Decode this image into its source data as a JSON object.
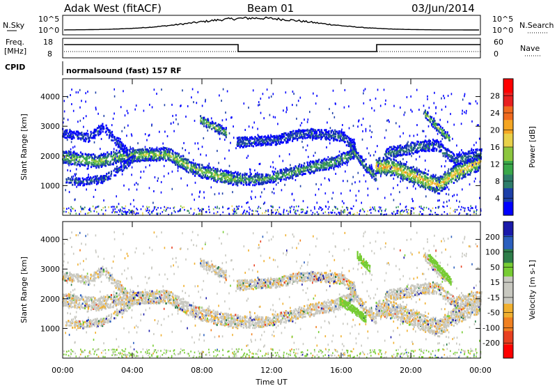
{
  "header": {
    "station": "Adak West (fitACF)",
    "beam": "Beam 01",
    "date": "03/Jun/2014"
  },
  "strips": {
    "nsky": {
      "label": "N.Sky",
      "left_top": "10^5",
      "left_bottom": "10^0",
      "right_top": "10^5",
      "right_bottom": "10^0",
      "right_label": "N.Search"
    },
    "freq": {
      "label_line1": "Freq.",
      "label_line2": "[MHz]",
      "left_top": "18",
      "left_bottom": "8",
      "right_top": "60",
      "right_bottom": "0",
      "right_label": "Nave"
    },
    "cpid": {
      "label": "CPID",
      "text": "normalsound (fast) 157 RF"
    }
  },
  "colors": {
    "power_scale": [
      "#0000ff",
      "#1c3fa8",
      "#2e7d6a",
      "#3aa84a",
      "#8cc63f",
      "#e8d14a",
      "#f5a623",
      "#f06a1e",
      "#e82020",
      "#ff0000"
    ],
    "velocity_scale": [
      "#1a1aaa",
      "#2b5fbe",
      "#2e7d4a",
      "#77cc33",
      "#c8c8c0",
      "#c8c8c0",
      "#f0b030",
      "#f08020",
      "#e84020",
      "#ff0000"
    ],
    "echo_gray": "#c8c8c0"
  },
  "chart_data": [
    {
      "type": "heatmap",
      "name": "power",
      "ylabel": "Slant Range [km]",
      "ylim": [
        0,
        4600
      ],
      "yticks": [
        1000,
        2000,
        3000,
        4000
      ],
      "xlim_hours": [
        0,
        24
      ],
      "colorbar": {
        "label": "Power [dB]",
        "min": 0,
        "max": 32,
        "ticks": [
          4,
          8,
          12,
          16,
          20,
          24,
          28
        ]
      },
      "bands": [
        {
          "h": [
            0.0,
            2.0,
            3.0,
            4.0,
            6.0,
            7.5,
            9.0,
            10.0
          ],
          "r": [
            2000,
            1850,
            2000,
            2050,
            2100,
            1600,
            1350,
            1250
          ],
          "w": 200,
          "p": 15
        },
        {
          "h": [
            0.2,
            1.2,
            2.3,
            3.5,
            4.1
          ],
          "r": [
            1200,
            1170,
            1250,
            1700,
            2000
          ],
          "w": 110,
          "p": 6
        },
        {
          "h": [
            0.0,
            1.5,
            2.3,
            3.2,
            3.8
          ],
          "r": [
            2800,
            2650,
            3000,
            2450,
            2050
          ],
          "w": 120,
          "p": 5
        },
        {
          "h": [
            10.0,
            11.5,
            13.0,
            14.5,
            15.5,
            16.3,
            16.8
          ],
          "r": [
            1250,
            1250,
            1450,
            1700,
            1800,
            2000,
            2200
          ],
          "w": 170,
          "p": 12
        },
        {
          "h": [
            10.0,
            12.0,
            14.0,
            16.0,
            16.8
          ],
          "r": [
            2500,
            2550,
            2800,
            2700,
            2350
          ],
          "w": 150,
          "p": 6
        },
        {
          "h": [
            16.5,
            17.2,
            18.0
          ],
          "r": [
            2350,
            1800,
            1300
          ],
          "w": 140,
          "p": 10
        },
        {
          "h": [
            18.0,
            19.0,
            20.0,
            21.0,
            21.6,
            22.5,
            24.0
          ],
          "r": [
            1700,
            1650,
            1400,
            1150,
            1050,
            1450,
            1850
          ],
          "w": 260,
          "p": 20
        },
        {
          "h": [
            18.5,
            20.5,
            21.5,
            22.5,
            24.0
          ],
          "r": [
            2100,
            2350,
            2400,
            1900,
            2100
          ],
          "w": 170,
          "p": 8
        },
        {
          "h": [
            20.8,
            21.5,
            22.2
          ],
          "r": [
            3450,
            3000,
            2600
          ],
          "w": 120,
          "p": 14
        },
        {
          "h": [
            7.9,
            8.6,
            9.4
          ],
          "r": [
            3250,
            3050,
            2800
          ],
          "w": 130,
          "p": 14
        }
      ]
    },
    {
      "type": "heatmap",
      "name": "velocity",
      "ylabel": "Slant Range [km]",
      "ylim": [
        0,
        4600
      ],
      "yticks": [
        1000,
        2000,
        3000,
        4000
      ],
      "xlabel": "Time UT",
      "xticks": [
        "00:00",
        "04:00",
        "08:00",
        "12:00",
        "16:00",
        "20:00",
        "00:00"
      ],
      "colorbar": {
        "label": "Velocity [m s-1]",
        "ticks": [
          200,
          100,
          50,
          15,
          -15,
          -50,
          -100,
          -200
        ]
      },
      "gs_bands_green": [
        {
          "h": [
            15.9,
            16.6,
            17.4
          ],
          "r": [
            1950,
            1700,
            1350
          ],
          "w": 110
        },
        {
          "h": [
            16.9,
            17.6
          ],
          "r": [
            3500,
            3050
          ],
          "w": 110
        },
        {
          "h": [
            21.0,
            21.6,
            22.3
          ],
          "r": [
            3450,
            3050,
            2600
          ],
          "w": 100
        }
      ]
    }
  ]
}
